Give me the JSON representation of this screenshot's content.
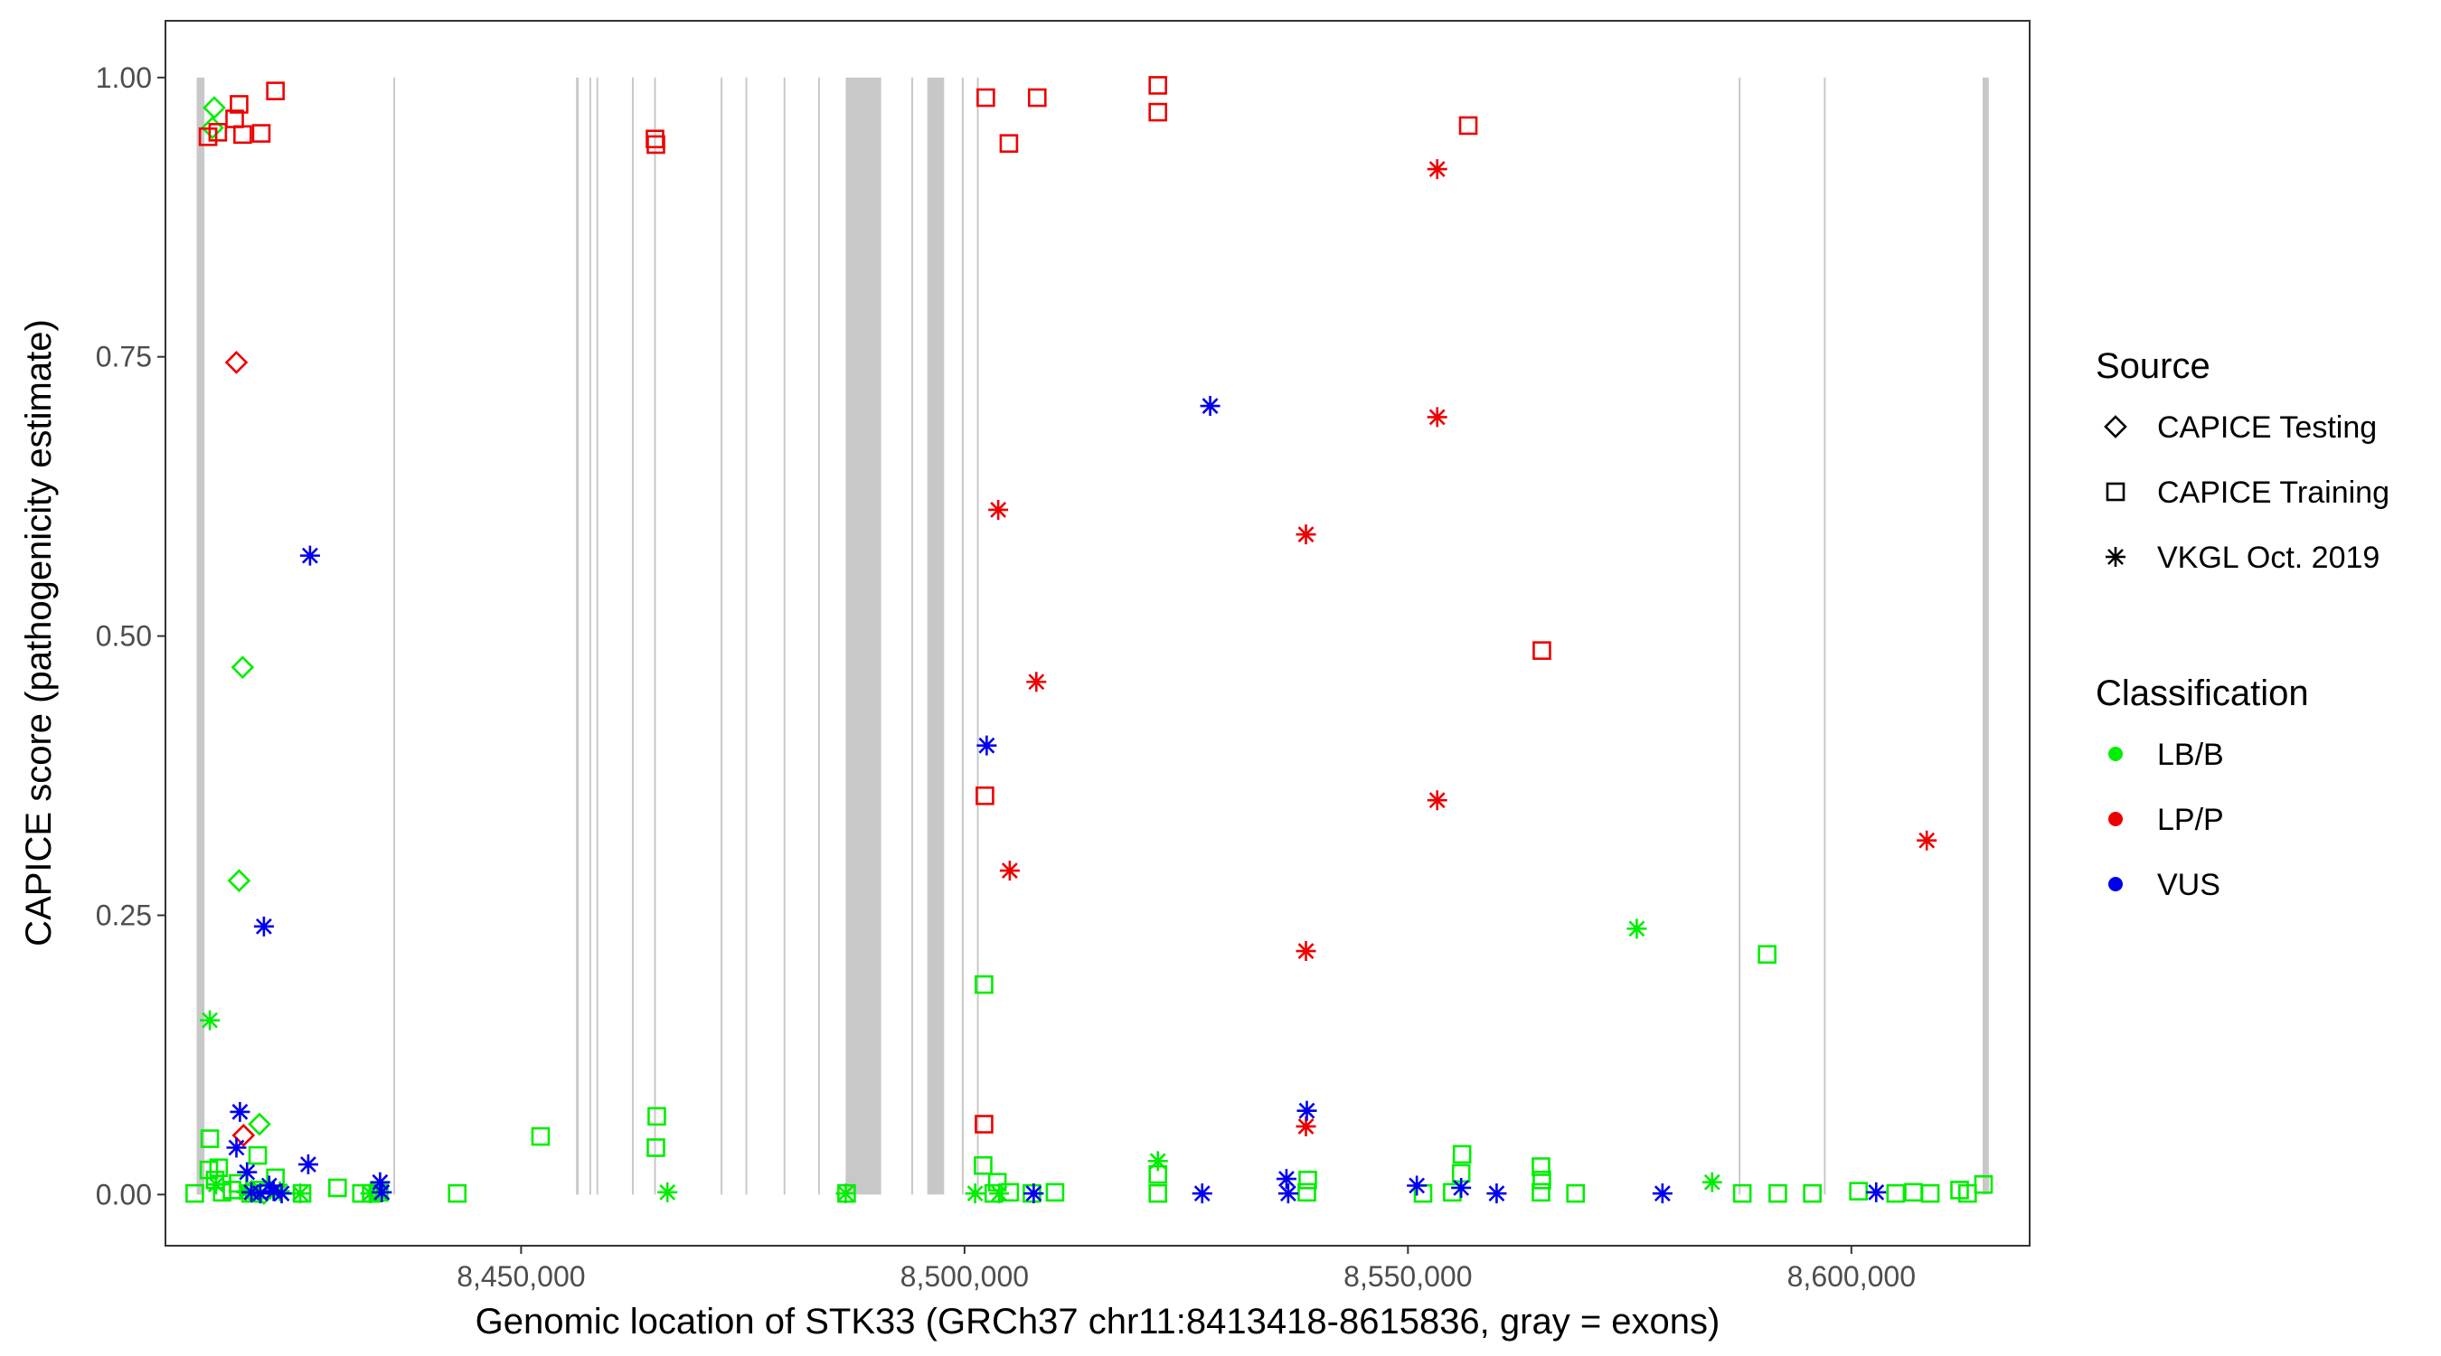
{
  "chart_data": {
    "type": "scatter",
    "xlabel": "Genomic location of STK33 (GRCh37 chr11:8413418-8615836, gray = exons)",
    "ylabel": "CAPICE score (pathogenicity estimate)",
    "xlim": [
      8410000,
      8620000
    ],
    "ylim": [
      -0.045,
      1.05
    ],
    "x_ticks": [
      8450000,
      8500000,
      8550000,
      8600000
    ],
    "x_tick_labels": [
      "8,450,000",
      "8,500,000",
      "8,550,000",
      "8,600,000"
    ],
    "y_ticks": [
      0,
      0.25,
      0.5,
      0.75,
      1.0
    ],
    "y_tick_labels": [
      "0.00",
      "0.25",
      "0.50",
      "0.75",
      "1.00"
    ],
    "grid": false,
    "exon_color": "#c8c8c8",
    "exons": [
      [
        8413418,
        8414300
      ],
      [
        8435600,
        8435800
      ],
      [
        8456200,
        8456500
      ],
      [
        8457700,
        8457900
      ],
      [
        8458500,
        8458700
      ],
      [
        8462500,
        8462700
      ],
      [
        8465000,
        8465200
      ],
      [
        8472500,
        8472700
      ],
      [
        8475300,
        8475500
      ],
      [
        8479600,
        8479800
      ],
      [
        8483500,
        8483700
      ],
      [
        8486600,
        8490600
      ],
      [
        8494000,
        8494200
      ],
      [
        8495800,
        8497700
      ],
      [
        8499700,
        8499900
      ],
      [
        8501400,
        8501600
      ],
      [
        8587300,
        8587500
      ],
      [
        8596900,
        8597100
      ],
      [
        8614800,
        8615500
      ]
    ],
    "legend": {
      "placement": "right",
      "source_title": "Source",
      "source_items": [
        {
          "label": "CAPICE Testing",
          "shape": "diamond"
        },
        {
          "label": "CAPICE Training",
          "shape": "square"
        },
        {
          "label": "VKGL Oct. 2019",
          "shape": "asterisk"
        }
      ],
      "class_title": "Classification",
      "class_items": [
        {
          "label": "LB/B",
          "color": "#00ee00"
        },
        {
          "label": "LP/P",
          "color": "#ee0000"
        },
        {
          "label": "VUS",
          "color": "#0000ee"
        }
      ]
    },
    "series": [
      {
        "source": "CAPICE Testing",
        "classification": "LB/B",
        "points": [
          [
            8415400,
            0.973
          ],
          [
            8415200,
            0.955
          ],
          [
            8418600,
            0.472
          ],
          [
            8418200,
            0.281
          ],
          [
            8420500,
            0.063
          ],
          [
            8419600,
            0.003
          ],
          [
            8421000,
            0.001
          ]
        ]
      },
      {
        "source": "CAPICE Testing",
        "classification": "LP/P",
        "points": [
          [
            8417900,
            0.745
          ],
          [
            8418700,
            0.053
          ]
        ]
      },
      {
        "source": "CAPICE Training",
        "classification": "LB/B",
        "points": [
          [
            8413200,
            0.001
          ],
          [
            8414800,
            0.022
          ],
          [
            8414900,
            0.05
          ],
          [
            8415500,
            0.013
          ],
          [
            8415900,
            0.024
          ],
          [
            8416300,
            0.002
          ],
          [
            8417400,
            0.004
          ],
          [
            8418100,
            0.01
          ],
          [
            8419500,
            0.001
          ],
          [
            8420300,
            0.035
          ],
          [
            8420800,
            0.004
          ],
          [
            8422300,
            0.015
          ],
          [
            8425300,
            0.001
          ],
          [
            8429300,
            0.006
          ],
          [
            8432000,
            0.001
          ],
          [
            8433100,
            0.001
          ],
          [
            8434000,
            0.002
          ],
          [
            8442800,
            0.001
          ],
          [
            8452200,
            0.052
          ],
          [
            8465300,
            0.07
          ],
          [
            8465200,
            0.042
          ],
          [
            8486700,
            0.001
          ],
          [
            8502200,
            0.188
          ],
          [
            8502100,
            0.026
          ],
          [
            8503300,
            0.001
          ],
          [
            8503700,
            0.011
          ],
          [
            8505100,
            0.002
          ],
          [
            8507600,
            0.001
          ],
          [
            8510200,
            0.002
          ],
          [
            8521800,
            0.018
          ],
          [
            8521800,
            0.001
          ],
          [
            8538700,
            0.013
          ],
          [
            8538600,
            0.002
          ],
          [
            8551700,
            0.001
          ],
          [
            8555000,
            0.002
          ],
          [
            8556100,
            0.036
          ],
          [
            8556000,
            0.019
          ],
          [
            8565000,
            0.025
          ],
          [
            8565100,
            0.013
          ],
          [
            8565000,
            0.002
          ],
          [
            8568900,
            0.001
          ],
          [
            8587700,
            0.001
          ],
          [
            8591700,
            0.001
          ],
          [
            8595600,
            0.001
          ],
          [
            8600800,
            0.003
          ],
          [
            8605000,
            0.001
          ],
          [
            8607000,
            0.002
          ],
          [
            8608900,
            0.001
          ],
          [
            8612200,
            0.004
          ],
          [
            8613100,
            0.001
          ],
          [
            8614900,
            0.009
          ],
          [
            8590500,
            0.215
          ]
        ]
      },
      {
        "source": "CAPICE Training",
        "classification": "LP/P",
        "points": [
          [
            8414700,
            0.947
          ],
          [
            8415800,
            0.951
          ],
          [
            8417700,
            0.963
          ],
          [
            8418200,
            0.976
          ],
          [
            8418600,
            0.949
          ],
          [
            8420700,
            0.95
          ],
          [
            8422300,
            0.988
          ],
          [
            8465100,
            0.945
          ],
          [
            8465200,
            0.94
          ],
          [
            8502400,
            0.982
          ],
          [
            8502300,
            0.357
          ],
          [
            8502200,
            0.063
          ],
          [
            8505000,
            0.941
          ],
          [
            8508200,
            0.982
          ],
          [
            8521800,
            0.993
          ],
          [
            8521800,
            0.969
          ],
          [
            8556800,
            0.957
          ],
          [
            8565100,
            0.487
          ]
        ]
      },
      {
        "source": "VKGL Oct. 2019",
        "classification": "LB/B",
        "points": [
          [
            8414900,
            0.156
          ],
          [
            8415600,
            0.009
          ],
          [
            8419000,
            0.002
          ],
          [
            8420600,
            0.001
          ],
          [
            8422800,
            0.003
          ],
          [
            8425100,
            0.001
          ],
          [
            8433000,
            0.001
          ],
          [
            8434000,
            0.002
          ],
          [
            8466500,
            0.002
          ],
          [
            8486600,
            0.001
          ],
          [
            8501200,
            0.001
          ],
          [
            8503900,
            0.001
          ],
          [
            8521800,
            0.03
          ],
          [
            8575800,
            0.238
          ],
          [
            8584300,
            0.011
          ]
        ]
      },
      {
        "source": "VKGL Oct. 2019",
        "classification": "LP/P",
        "points": [
          [
            8503800,
            0.613
          ],
          [
            8505100,
            0.29
          ],
          [
            8508100,
            0.459
          ],
          [
            8538500,
            0.591
          ],
          [
            8538500,
            0.218
          ],
          [
            8538500,
            0.061
          ],
          [
            8553300,
            0.918
          ],
          [
            8553300,
            0.696
          ],
          [
            8553300,
            0.353
          ],
          [
            8608500,
            0.317
          ]
        ]
      },
      {
        "source": "VKGL Oct. 2019",
        "classification": "VUS",
        "points": [
          [
            8418300,
            0.074
          ],
          [
            8417900,
            0.042
          ],
          [
            8419100,
            0.02
          ],
          [
            8421000,
            0.24
          ],
          [
            8426200,
            0.572
          ],
          [
            8426000,
            0.027
          ],
          [
            8419600,
            0.002
          ],
          [
            8420600,
            0.001
          ],
          [
            8421600,
            0.008
          ],
          [
            8422100,
            0.003
          ],
          [
            8423000,
            0.001
          ],
          [
            8434100,
            0.011
          ],
          [
            8434300,
            0.002
          ],
          [
            8502500,
            0.402
          ],
          [
            8507800,
            0.001
          ],
          [
            8526800,
            0.001
          ],
          [
            8527700,
            0.706
          ],
          [
            8536300,
            0.014
          ],
          [
            8536500,
            0.001
          ],
          [
            8538600,
            0.075
          ],
          [
            8551000,
            0.008
          ],
          [
            8556000,
            0.006
          ],
          [
            8560000,
            0.001
          ],
          [
            8578700,
            0.001
          ],
          [
            8602800,
            0.002
          ]
        ]
      }
    ]
  }
}
